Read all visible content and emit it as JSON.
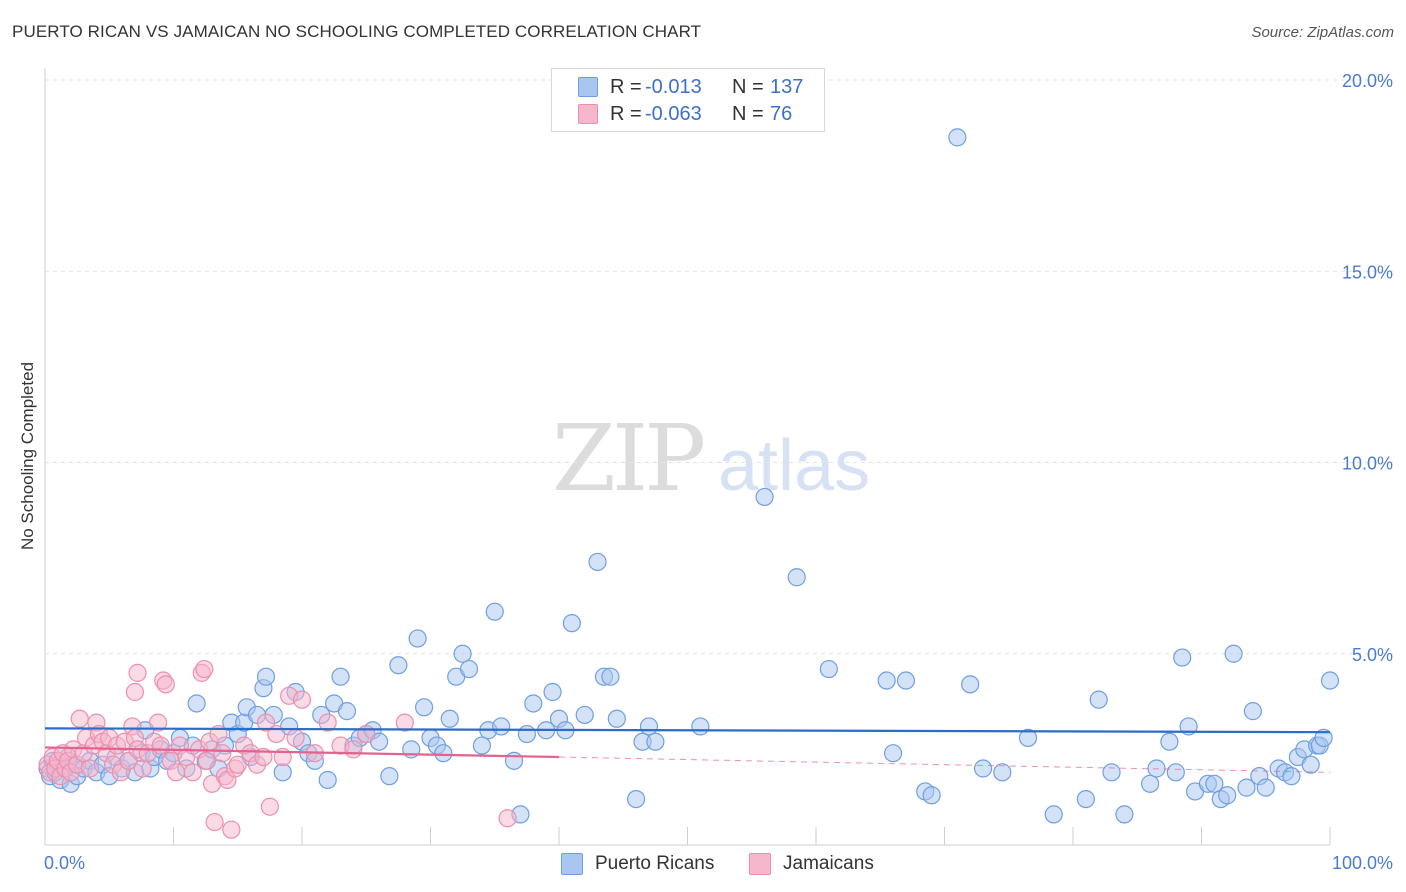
{
  "title": "PUERTO RICAN VS JAMAICAN NO SCHOOLING COMPLETED CORRELATION CHART",
  "source": "Source: ZipAtlas.com",
  "watermark": {
    "zip": "ZIP",
    "atlas": "atlas"
  },
  "legend": {
    "r_label": "R =",
    "n_label": "N =",
    "rows": [
      {
        "r": "-0.013",
        "n": "137"
      },
      {
        "r": "-0.063",
        "n": "76"
      }
    ]
  },
  "colors": {
    "blue_fill": "#a9c6f0",
    "blue_stroke": "#6f9fe0",
    "blue_line": "#2a6cc7",
    "pink_fill": "#f6b6cb",
    "pink_stroke": "#ec8fae",
    "pink_line": "#e4628d",
    "grid": "#e3e3e3",
    "tick_text": "#4a7bd0"
  },
  "chart_data": {
    "type": "scatter",
    "title": "PUERTO RICAN VS JAMAICAN NO SCHOOLING COMPLETED CORRELATION CHART",
    "xlabel": "",
    "ylabel": "No Schooling Completed",
    "xlim": [
      0,
      100
    ],
    "ylim": [
      0,
      21
    ],
    "x_tick_labels": [
      "0.0%",
      "100.0%"
    ],
    "y_ticks": [
      5,
      10,
      15,
      20
    ],
    "y_tick_labels": [
      "5.0%",
      "10.0%",
      "15.0%",
      "20.0%"
    ],
    "legend_position": "top-center",
    "series": [
      {
        "name": "Puerto Ricans",
        "R": -0.013,
        "N": 137,
        "trend": {
          "x": [
            0,
            100
          ],
          "y": [
            3.05,
            2.95
          ],
          "style": "solid"
        },
        "points": [
          [
            0.2,
            2.0
          ],
          [
            0.4,
            1.8
          ],
          [
            0.6,
            2.2
          ],
          [
            0.8,
            1.9
          ],
          [
            1.0,
            2.1
          ],
          [
            1.2,
            1.7
          ],
          [
            1.5,
            2.0
          ],
          [
            1.8,
            2.3
          ],
          [
            2.0,
            1.6
          ],
          [
            2.2,
            2.1
          ],
          [
            2.5,
            1.8
          ],
          [
            3.0,
            2.0
          ],
          [
            3.5,
            2.2
          ],
          [
            4.0,
            1.9
          ],
          [
            4.5,
            2.1
          ],
          [
            5.0,
            1.8
          ],
          [
            5.5,
            2.3
          ],
          [
            6.0,
            2.0
          ],
          [
            6.5,
            2.2
          ],
          [
            7.0,
            1.9
          ],
          [
            7.5,
            2.4
          ],
          [
            7.8,
            3.0
          ],
          [
            8.2,
            2.0
          ],
          [
            8.5,
            2.3
          ],
          [
            9.0,
            2.5
          ],
          [
            9.5,
            2.2
          ],
          [
            10.0,
            2.4
          ],
          [
            10.5,
            2.8
          ],
          [
            11.0,
            2.0
          ],
          [
            11.5,
            2.6
          ],
          [
            11.8,
            3.7
          ],
          [
            12.5,
            2.2
          ],
          [
            13.0,
            2.5
          ],
          [
            13.5,
            2.0
          ],
          [
            14.0,
            2.6
          ],
          [
            14.5,
            3.2
          ],
          [
            15.0,
            2.9
          ],
          [
            15.5,
            3.2
          ],
          [
            15.7,
            3.6
          ],
          [
            16.0,
            2.3
          ],
          [
            16.5,
            3.4
          ],
          [
            17.0,
            4.1
          ],
          [
            17.2,
            4.4
          ],
          [
            17.8,
            3.4
          ],
          [
            18.5,
            1.9
          ],
          [
            19.0,
            3.1
          ],
          [
            19.5,
            4.0
          ],
          [
            20.0,
            2.7
          ],
          [
            20.5,
            2.4
          ],
          [
            21.0,
            2.2
          ],
          [
            21.5,
            3.4
          ],
          [
            22.0,
            1.7
          ],
          [
            22.5,
            3.7
          ],
          [
            23.0,
            4.4
          ],
          [
            23.5,
            3.5
          ],
          [
            24.0,
            2.6
          ],
          [
            24.5,
            2.8
          ],
          [
            25.0,
            2.9
          ],
          [
            25.5,
            3.0
          ],
          [
            26.0,
            2.7
          ],
          [
            26.8,
            1.8
          ],
          [
            27.5,
            4.7
          ],
          [
            28.5,
            2.5
          ],
          [
            29.0,
            5.4
          ],
          [
            29.5,
            3.6
          ],
          [
            30.0,
            2.8
          ],
          [
            30.5,
            2.6
          ],
          [
            31.0,
            2.4
          ],
          [
            31.5,
            3.3
          ],
          [
            32.0,
            4.4
          ],
          [
            32.5,
            5.0
          ],
          [
            33.0,
            4.6
          ],
          [
            34.0,
            2.6
          ],
          [
            34.5,
            3.0
          ],
          [
            35.0,
            6.1
          ],
          [
            35.5,
            3.1
          ],
          [
            36.5,
            2.2
          ],
          [
            37.0,
            0.8
          ],
          [
            37.5,
            2.9
          ],
          [
            38.0,
            3.7
          ],
          [
            39.0,
            3.0
          ],
          [
            39.5,
            4.0
          ],
          [
            40.0,
            3.3
          ],
          [
            40.5,
            3.0
          ],
          [
            41.0,
            5.8
          ],
          [
            42.0,
            3.4
          ],
          [
            43.0,
            7.4
          ],
          [
            43.5,
            4.4
          ],
          [
            44.0,
            4.4
          ],
          [
            44.5,
            3.3
          ],
          [
            46.0,
            1.2
          ],
          [
            46.5,
            2.7
          ],
          [
            47.0,
            3.1
          ],
          [
            47.5,
            2.7
          ],
          [
            51.0,
            3.1
          ],
          [
            56.0,
            9.1
          ],
          [
            58.5,
            7.0
          ],
          [
            61.0,
            4.6
          ],
          [
            65.5,
            4.3
          ],
          [
            66.0,
            2.4
          ],
          [
            67.0,
            4.3
          ],
          [
            68.5,
            1.4
          ],
          [
            69.0,
            1.3
          ],
          [
            71.0,
            18.5
          ],
          [
            72.0,
            4.2
          ],
          [
            73.0,
            2.0
          ],
          [
            74.5,
            1.9
          ],
          [
            76.5,
            2.8
          ],
          [
            78.5,
            0.8
          ],
          [
            81.0,
            1.2
          ],
          [
            82.0,
            3.8
          ],
          [
            83.0,
            1.9
          ],
          [
            84.0,
            0.8
          ],
          [
            86.0,
            1.6
          ],
          [
            86.5,
            2.0
          ],
          [
            87.5,
            2.7
          ],
          [
            88.0,
            1.9
          ],
          [
            88.5,
            4.9
          ],
          [
            89.0,
            3.1
          ],
          [
            89.5,
            1.4
          ],
          [
            90.5,
            1.6
          ],
          [
            91.0,
            1.6
          ],
          [
            91.5,
            1.2
          ],
          [
            92.0,
            1.3
          ],
          [
            92.5,
            5.0
          ],
          [
            93.5,
            1.5
          ],
          [
            94.0,
            3.5
          ],
          [
            94.5,
            1.8
          ],
          [
            95.0,
            1.5
          ],
          [
            96.0,
            2.0
          ],
          [
            96.5,
            1.9
          ],
          [
            97.0,
            1.8
          ],
          [
            97.5,
            2.3
          ],
          [
            98.0,
            2.5
          ],
          [
            98.5,
            2.1
          ],
          [
            99.0,
            2.6
          ],
          [
            99.2,
            2.6
          ],
          [
            99.5,
            2.8
          ],
          [
            100.0,
            4.3
          ]
        ]
      },
      {
        "name": "Jamaicans",
        "R": -0.063,
        "N": 76,
        "trend": {
          "x": [
            0,
            40
          ],
          "y": [
            2.55,
            2.3
          ],
          "style": "solid",
          "extend_to": [
            100,
            1.9
          ],
          "extend_style": "dashed"
        },
        "points": [
          [
            0.2,
            2.1
          ],
          [
            0.4,
            1.9
          ],
          [
            0.6,
            2.3
          ],
          [
            0.8,
            2.0
          ],
          [
            1.0,
            2.2
          ],
          [
            1.2,
            1.8
          ],
          [
            1.4,
            2.4
          ],
          [
            1.6,
            2.0
          ],
          [
            1.8,
            2.2
          ],
          [
            2.0,
            1.9
          ],
          [
            2.2,
            2.5
          ],
          [
            2.5,
            2.1
          ],
          [
            2.7,
            3.3
          ],
          [
            3.0,
            2.4
          ],
          [
            3.2,
            2.8
          ],
          [
            3.5,
            2.0
          ],
          [
            3.8,
            2.6
          ],
          [
            4.0,
            3.2
          ],
          [
            4.2,
            2.9
          ],
          [
            4.5,
            2.7
          ],
          [
            4.8,
            2.4
          ],
          [
            5.0,
            2.8
          ],
          [
            5.3,
            2.1
          ],
          [
            5.6,
            2.6
          ],
          [
            5.9,
            1.9
          ],
          [
            6.2,
            2.7
          ],
          [
            6.5,
            2.2
          ],
          [
            6.8,
            3.1
          ],
          [
            7.0,
            2.8
          ],
          [
            7.2,
            2.5
          ],
          [
            7.0,
            4.0
          ],
          [
            7.2,
            4.5
          ],
          [
            7.6,
            2.0
          ],
          [
            8.0,
            2.4
          ],
          [
            8.5,
            2.7
          ],
          [
            8.8,
            3.2
          ],
          [
            9.0,
            2.6
          ],
          [
            9.2,
            4.3
          ],
          [
            9.4,
            4.2
          ],
          [
            9.8,
            2.2
          ],
          [
            10.2,
            1.9
          ],
          [
            10.5,
            2.6
          ],
          [
            11.0,
            2.3
          ],
          [
            11.5,
            1.9
          ],
          [
            12.0,
            2.5
          ],
          [
            12.2,
            4.5
          ],
          [
            12.4,
            4.6
          ],
          [
            12.6,
            2.2
          ],
          [
            12.8,
            2.7
          ],
          [
            13.0,
            1.6
          ],
          [
            13.2,
            0.6
          ],
          [
            13.5,
            2.9
          ],
          [
            13.8,
            2.4
          ],
          [
            14.0,
            1.8
          ],
          [
            14.2,
            1.7
          ],
          [
            14.5,
            0.4
          ],
          [
            14.8,
            2.0
          ],
          [
            15.0,
            2.1
          ],
          [
            15.5,
            2.6
          ],
          [
            16.0,
            2.4
          ],
          [
            16.5,
            2.1
          ],
          [
            17.0,
            2.3
          ],
          [
            17.2,
            3.2
          ],
          [
            17.5,
            1.0
          ],
          [
            18.0,
            2.9
          ],
          [
            18.5,
            2.3
          ],
          [
            19.0,
            3.9
          ],
          [
            19.5,
            2.8
          ],
          [
            20.0,
            3.8
          ],
          [
            21.0,
            2.4
          ],
          [
            22.0,
            3.2
          ],
          [
            23.0,
            2.6
          ],
          [
            24.0,
            2.5
          ],
          [
            25.0,
            2.9
          ],
          [
            28.0,
            3.2
          ],
          [
            36.0,
            0.7
          ]
        ]
      }
    ]
  },
  "bottom_legend": [
    "Puerto Ricans",
    "Jamaicans"
  ]
}
